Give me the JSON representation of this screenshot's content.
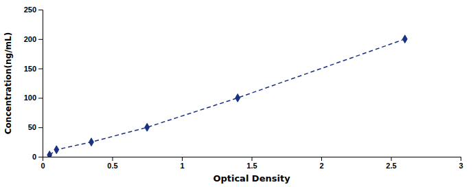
{
  "chart_data": {
    "type": "line",
    "x": [
      0.05,
      0.1,
      0.35,
      0.75,
      1.4,
      2.6
    ],
    "values": [
      3,
      12,
      25,
      50,
      100,
      200
    ],
    "color": "#1a3080",
    "marker": "diamond",
    "line_style": "dashed",
    "xlabel": "Optical Density",
    "ylabel": "Concentration(ng/mL)",
    "xlim": [
      0,
      3
    ],
    "ylim": [
      0,
      250
    ],
    "xticks": [
      0,
      0.5,
      1,
      1.5,
      2,
      2.5,
      3
    ],
    "yticks": [
      0,
      50,
      100,
      150,
      200,
      250
    ],
    "grid": false
  }
}
